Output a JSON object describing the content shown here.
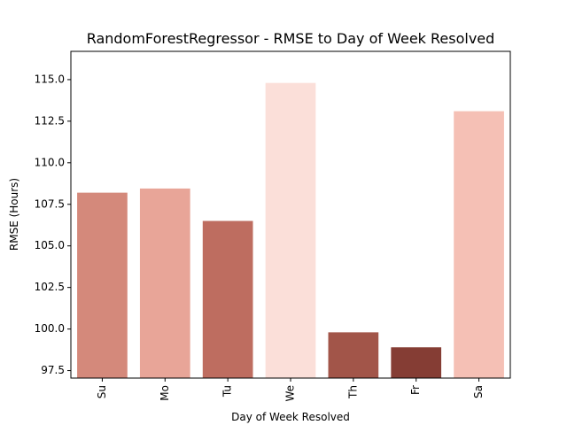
{
  "chart_data": {
    "type": "bar",
    "title": "RandomForestRegressor - RMSE to Day of Week Resolved",
    "xlabel": "Day of Week Resolved",
    "ylabel": "RMSE (Hours)",
    "categories": [
      "Su",
      "Mo",
      "Tu",
      "We",
      "Th",
      "Fr",
      "Sa"
    ],
    "values": [
      108.2,
      108.45,
      106.5,
      114.8,
      99.8,
      98.9,
      113.1
    ],
    "colors": [
      "#d4897b",
      "#e8a598",
      "#be6d60",
      "#fbdfd9",
      "#a25549",
      "#853d34",
      "#f5c0b5"
    ],
    "ylim": [
      97.05,
      116.7
    ],
    "yticks": [
      "97.5",
      "100.0",
      "102.5",
      "105.0",
      "107.5",
      "110.0",
      "112.5",
      "115.0"
    ],
    "grid": false,
    "legend": "none"
  }
}
